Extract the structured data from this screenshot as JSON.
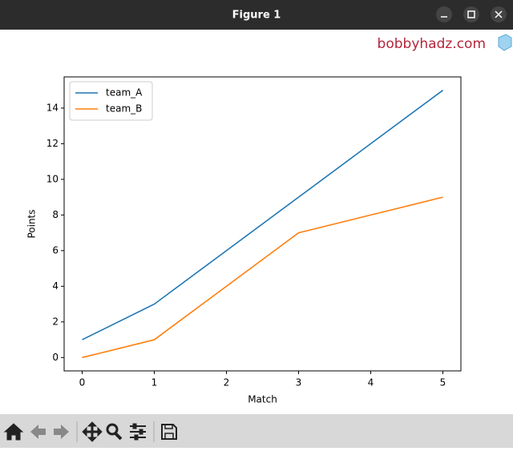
{
  "window": {
    "title": "Figure 1"
  },
  "watermark": "bobbyhadz.com",
  "chart_data": {
    "type": "line",
    "x": [
      0,
      1,
      2,
      3,
      4,
      5
    ],
    "series": [
      {
        "name": "team_A",
        "color": "#1f77b4",
        "values": [
          1,
          3,
          6,
          9,
          12,
          15
        ]
      },
      {
        "name": "team_B",
        "color": "#ff7f0e",
        "values": [
          0,
          1,
          4,
          7,
          8,
          9
        ]
      }
    ],
    "xlabel": "Match",
    "ylabel": "Points",
    "xlim": [
      -0.25,
      5.25
    ],
    "ylim": [
      -0.75,
      15.75
    ],
    "xticks": [
      0,
      1,
      2,
      3,
      4,
      5
    ],
    "yticks": [
      0,
      2,
      4,
      6,
      8,
      10,
      12,
      14
    ],
    "legend": "upper left"
  }
}
